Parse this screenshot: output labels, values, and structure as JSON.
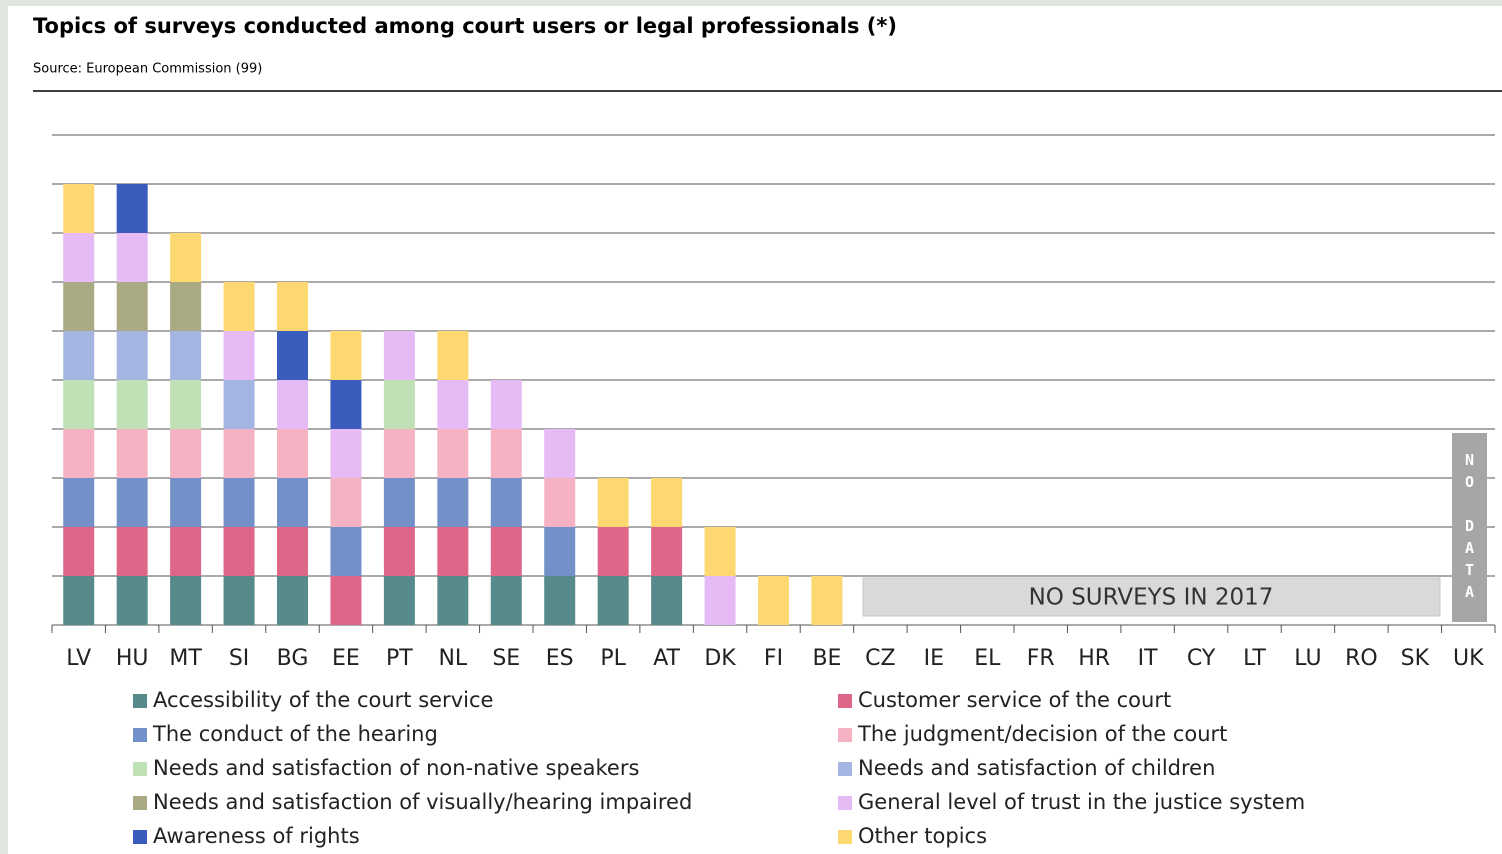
{
  "chart_data": {
    "type": "stacked_bar",
    "title": "Topics of surveys conducted among court users or legal professionals (*)",
    "subtitle": "Source: European Commission (99)",
    "categories": [
      "LV",
      "HU",
      "MT",
      "SI",
      "BG",
      "EE",
      "PT",
      "NL",
      "SE",
      "ES",
      "PL",
      "AT",
      "DK",
      "FI",
      "BE",
      "CZ",
      "IE",
      "EL",
      "FR",
      "HR",
      "IT",
      "CY",
      "LT",
      "LU",
      "RO",
      "SK",
      "UK"
    ],
    "ylim": [
      0,
      10
    ],
    "yticks": [
      0,
      1,
      2,
      3,
      4,
      5,
      6,
      7,
      8,
      9,
      10
    ],
    "grid": true,
    "series": [
      {
        "name": "Accessibility of the court service",
        "color": "#578a8a",
        "values": [
          1,
          1,
          1,
          1,
          1,
          0,
          1,
          1,
          1,
          1,
          1,
          1,
          0,
          0,
          0,
          0,
          0,
          0,
          0,
          0,
          0,
          0,
          0,
          0,
          0,
          0,
          0
        ]
      },
      {
        "name": "Customer service of the court",
        "color": "#de6689",
        "values": [
          1,
          1,
          1,
          1,
          1,
          1,
          1,
          1,
          1,
          0,
          1,
          1,
          0,
          0,
          0,
          0,
          0,
          0,
          0,
          0,
          0,
          0,
          0,
          0,
          0,
          0,
          0
        ]
      },
      {
        "name": "The conduct of the hearing",
        "color": "#7390c9",
        "values": [
          1,
          1,
          1,
          1,
          1,
          1,
          1,
          1,
          1,
          1,
          0,
          0,
          0,
          0,
          0,
          0,
          0,
          0,
          0,
          0,
          0,
          0,
          0,
          0,
          0,
          0,
          0
        ]
      },
      {
        "name": "The judgment/decision of the court",
        "color": "#f4b2c2",
        "values": [
          1,
          1,
          1,
          1,
          1,
          1,
          1,
          1,
          1,
          1,
          0,
          0,
          0,
          0,
          0,
          0,
          0,
          0,
          0,
          0,
          0,
          0,
          0,
          0,
          0,
          0,
          0
        ]
      },
      {
        "name": "Needs and satisfaction of non-native speakers",
        "color": "#c0e0b6",
        "values": [
          1,
          1,
          1,
          0,
          0,
          0,
          1,
          0,
          0,
          0,
          0,
          0,
          0,
          0,
          0,
          0,
          0,
          0,
          0,
          0,
          0,
          0,
          0,
          0,
          0,
          0,
          0
        ]
      },
      {
        "name": "Needs and satisfaction of children",
        "color": "#a3b5e0",
        "values": [
          1,
          1,
          1,
          1,
          0,
          0,
          0,
          0,
          0,
          0,
          0,
          0,
          0,
          0,
          0,
          0,
          0,
          0,
          0,
          0,
          0,
          0,
          0,
          0,
          0,
          0,
          0
        ]
      },
      {
        "name": "Needs and satisfaction of visually/hearing impaired",
        "color": "#a9a983",
        "values": [
          1,
          1,
          1,
          0,
          0,
          0,
          0,
          0,
          0,
          0,
          0,
          0,
          0,
          0,
          0,
          0,
          0,
          0,
          0,
          0,
          0,
          0,
          0,
          0,
          0,
          0,
          0
        ]
      },
      {
        "name": "General level of trust in the justice system",
        "color": "#e5baf5",
        "values": [
          1,
          1,
          0,
          1,
          1,
          1,
          1,
          1,
          1,
          1,
          0,
          0,
          1,
          0,
          0,
          0,
          0,
          0,
          0,
          0,
          0,
          0,
          0,
          0,
          0,
          0,
          0
        ]
      },
      {
        "name": "Awareness of rights",
        "color": "#3a5dbd",
        "values": [
          0,
          1,
          0,
          0,
          1,
          1,
          0,
          0,
          0,
          0,
          0,
          0,
          0,
          0,
          0,
          0,
          0,
          0,
          0,
          0,
          0,
          0,
          0,
          0,
          0,
          0,
          0
        ]
      },
      {
        "name": "Other topics",
        "color": "#fdd871",
        "values": [
          1,
          0,
          1,
          1,
          1,
          1,
          0,
          1,
          0,
          0,
          1,
          1,
          1,
          1,
          1,
          0,
          0,
          0,
          0,
          0,
          0,
          0,
          0,
          0,
          0,
          0,
          0
        ]
      }
    ],
    "annotations": [
      "NO SURVEYS IN 2017",
      "NO DATA"
    ]
  }
}
